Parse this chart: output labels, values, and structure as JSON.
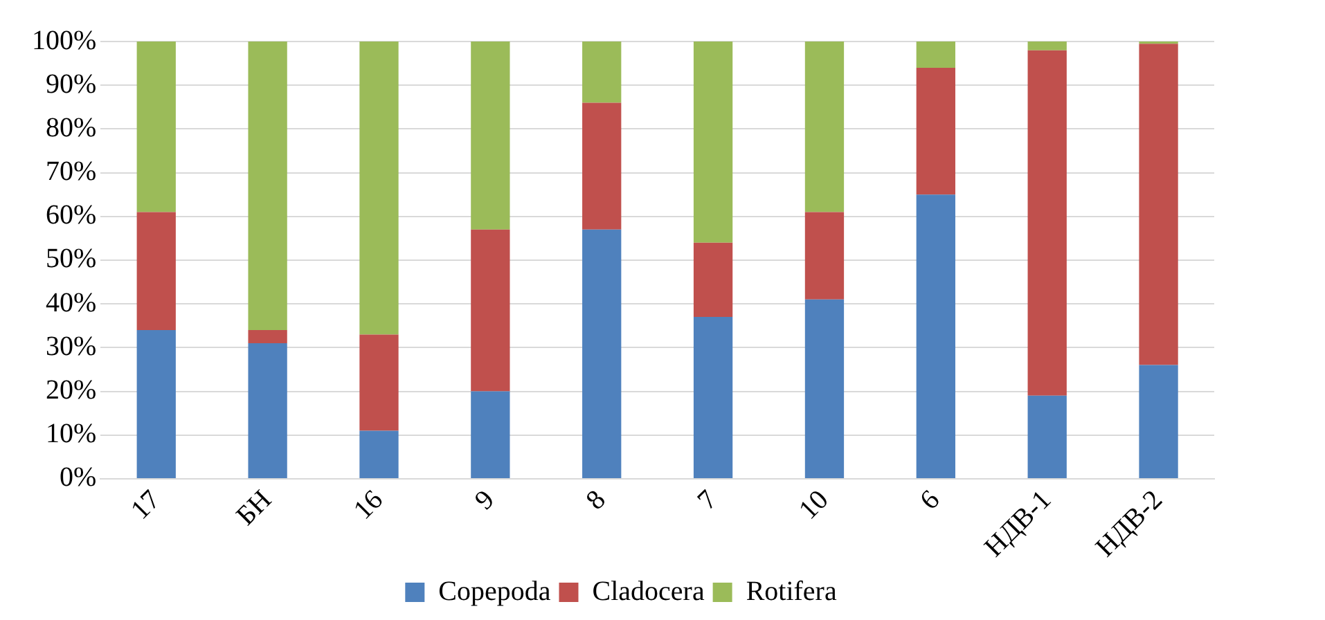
{
  "chart_data": {
    "type": "bar",
    "stacked": true,
    "categories": [
      "17",
      "БН",
      "16",
      "9",
      "8",
      "7",
      "10",
      "6",
      "НДВ-1",
      "НДВ-2"
    ],
    "series": [
      {
        "name": "Copepoda",
        "color": "#4f81bd",
        "values": [
          34,
          31,
          11,
          20,
          57,
          37,
          41,
          65,
          19,
          26
        ]
      },
      {
        "name": "Cladocera",
        "color": "#c0504d",
        "values": [
          27,
          3,
          22,
          37,
          29,
          17,
          20,
          29,
          79,
          73.5
        ]
      },
      {
        "name": "Rotifera",
        "color": "#9bbb59",
        "values": [
          39,
          66,
          67,
          43,
          14,
          46,
          39,
          6,
          2,
          0.5
        ]
      }
    ],
    "ylim": [
      0,
      100
    ],
    "yticks": [
      {
        "value": 0,
        "label": "0%"
      },
      {
        "value": 10,
        "label": "10%"
      },
      {
        "value": 20,
        "label": "20%"
      },
      {
        "value": 30,
        "label": "30%"
      },
      {
        "value": 40,
        "label": "40%"
      },
      {
        "value": 50,
        "label": "50%"
      },
      {
        "value": 60,
        "label": "60%"
      },
      {
        "value": 70,
        "label": "70%"
      },
      {
        "value": 80,
        "label": "80%"
      },
      {
        "value": 90,
        "label": "90%"
      },
      {
        "value": 100,
        "label": "100%"
      }
    ],
    "grid": "y",
    "legend": "bottom"
  }
}
